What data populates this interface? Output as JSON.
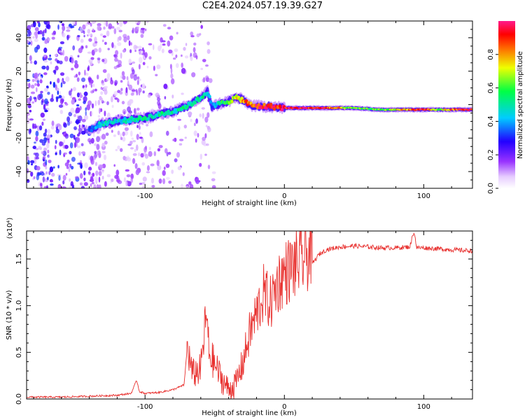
{
  "title": "C2E4.2024.057.19.39.G27",
  "colors": {
    "snr_line": "#e8312f",
    "spectrogram_scatter": "#8a2be2",
    "axis": "#000000"
  },
  "chart_data": [
    {
      "type": "heatmap",
      "title": "C2E4.2024.057.19.39.G27",
      "xlabel": "Height of straight line (km)",
      "ylabel": "Frequency (Hz)",
      "xlim": [
        -185,
        135
      ],
      "ylim": [
        -50,
        50
      ],
      "x_ticks": [
        -100,
        0,
        100
      ],
      "y_ticks": [
        -40,
        -20,
        0,
        20,
        40
      ],
      "colorbar": {
        "label": "Normalized spectral amplitude",
        "range": [
          0,
          1
        ],
        "ticks": [
          0.0,
          0.2,
          0.4,
          0.6,
          0.8
        ],
        "colormap": "rainbow (white-purple-blue-cyan-green-yellow-red-magenta)"
      },
      "ridge": {
        "x": [
          -140,
          -130,
          -120,
          -110,
          -100,
          -90,
          -80,
          -70,
          -60,
          -55,
          -52,
          -48,
          -45,
          -40,
          -35,
          -30,
          -25,
          -20,
          -10,
          0,
          10,
          30,
          50,
          70,
          90,
          100,
          110,
          120,
          135
        ],
        "y": [
          -15,
          -11,
          -10,
          -9,
          -8,
          -6,
          -4,
          -1,
          4,
          8,
          -1,
          0,
          1,
          2,
          4,
          3,
          0,
          -1,
          -1,
          -2,
          -2,
          -2,
          -2,
          -3,
          -3,
          -3,
          -3,
          -3,
          -3
        ],
        "amplitude": [
          0.35,
          0.45,
          0.45,
          0.45,
          0.5,
          0.5,
          0.5,
          0.5,
          0.5,
          0.5,
          0.3,
          0.5,
          0.55,
          0.6,
          0.7,
          0.75,
          0.85,
          0.9,
          0.9,
          0.95,
          0.95,
          0.9,
          0.6,
          0.6,
          0.85,
          0.95,
          0.6,
          0.85,
          0.95
        ]
      }
    },
    {
      "type": "line",
      "xlabel": "Height of straight line (km)",
      "ylabel": "SNR (10 * v/v)",
      "y_multiplier": "(x10⁴)",
      "xlim": [
        -185,
        135
      ],
      "ylim": [
        0,
        1.8
      ],
      "x_ticks": [
        -100,
        0,
        100
      ],
      "y_ticks": [
        0.0,
        0.5,
        1.0,
        1.5
      ],
      "y_tick_labels": [
        "0.0",
        "0.5",
        "1.0",
        "1.5"
      ],
      "series": [
        {
          "values_note": "SNR in units of 10^4",
          "x": [
            -185,
            -160,
            -140,
            -120,
            -110,
            -106,
            -104,
            -100,
            -90,
            -80,
            -72,
            -70,
            -66,
            -60,
            -56,
            -54,
            -50,
            -45,
            -40,
            -35,
            -30,
            -25,
            -20,
            -15,
            -10,
            -5,
            0,
            5,
            10,
            15,
            20,
            25,
            30,
            40,
            50,
            60,
            70,
            80,
            90,
            93,
            95,
            100,
            110,
            120,
            130,
            135
          ],
          "y": [
            0.02,
            0.02,
            0.03,
            0.04,
            0.06,
            0.2,
            0.08,
            0.06,
            0.07,
            0.1,
            0.15,
            0.5,
            0.2,
            0.25,
            0.8,
            0.4,
            0.3,
            0.15,
            0.05,
            0.1,
            0.3,
            0.6,
            0.8,
            1.0,
            0.9,
            1.1,
            1.2,
            1.25,
            1.3,
            1.35,
            1.45,
            1.55,
            1.6,
            1.63,
            1.64,
            1.63,
            1.62,
            1.62,
            1.63,
            1.8,
            1.62,
            1.62,
            1.61,
            1.6,
            1.59,
            1.59
          ]
        }
      ]
    }
  ]
}
